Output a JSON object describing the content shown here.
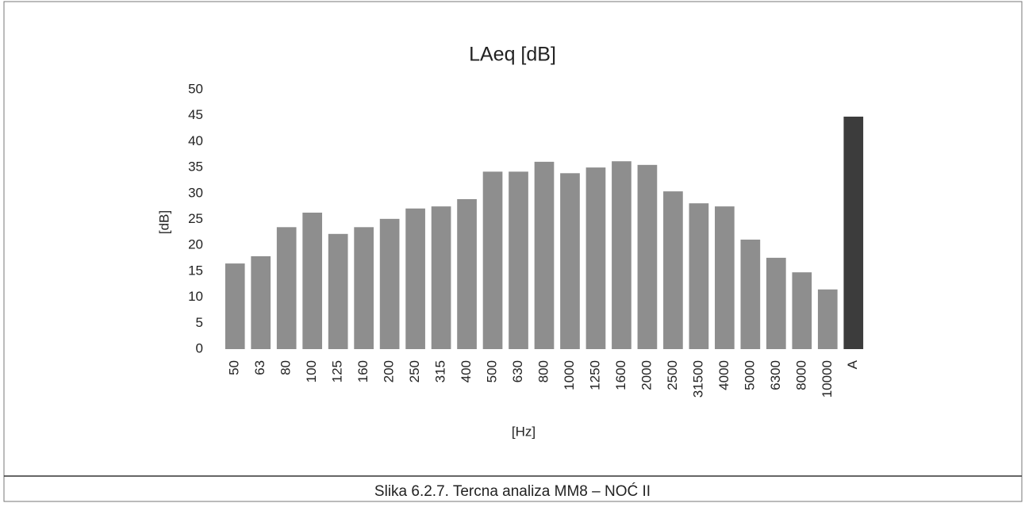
{
  "chart_data": {
    "type": "bar",
    "title": "LAeq [dB]",
    "y_label": "[dB]",
    "x_label": "[Hz]",
    "categories": [
      "50",
      "63",
      "80",
      "100",
      "125",
      "160",
      "200",
      "250",
      "315",
      "400",
      "500",
      "630",
      "800",
      "1000",
      "1250",
      "1600",
      "2000",
      "2500",
      "31500",
      "4000",
      "5000",
      "6300",
      "8000",
      "10000",
      "A"
    ],
    "values": [
      16.5,
      17.9,
      23.5,
      26.3,
      22.2,
      23.5,
      25.1,
      27.1,
      27.5,
      28.9,
      34.2,
      34.2,
      36.1,
      33.9,
      35.0,
      36.2,
      35.5,
      30.4,
      28.1,
      27.5,
      21.1,
      17.6,
      14.8,
      11.5,
      44.8
    ],
    "colors": [
      "#8e8e8e",
      "#8e8e8e",
      "#8e8e8e",
      "#8e8e8e",
      "#8e8e8e",
      "#8e8e8e",
      "#8e8e8e",
      "#8e8e8e",
      "#8e8e8e",
      "#8e8e8e",
      "#8e8e8e",
      "#8e8e8e",
      "#8e8e8e",
      "#8e8e8e",
      "#8e8e8e",
      "#8e8e8e",
      "#8e8e8e",
      "#8e8e8e",
      "#8e8e8e",
      "#8e8e8e",
      "#8e8e8e",
      "#8e8e8e",
      "#8e8e8e",
      "#8e8e8e",
      "#3c3c3c"
    ],
    "ylim": [
      0,
      50
    ],
    "yticks": [
      0,
      5,
      10,
      15,
      20,
      25,
      30,
      35,
      40,
      45,
      50
    ],
    "grid": false
  },
  "caption": "Slika 6.2.7. Tercna analiza MM8 – NOĆ II"
}
